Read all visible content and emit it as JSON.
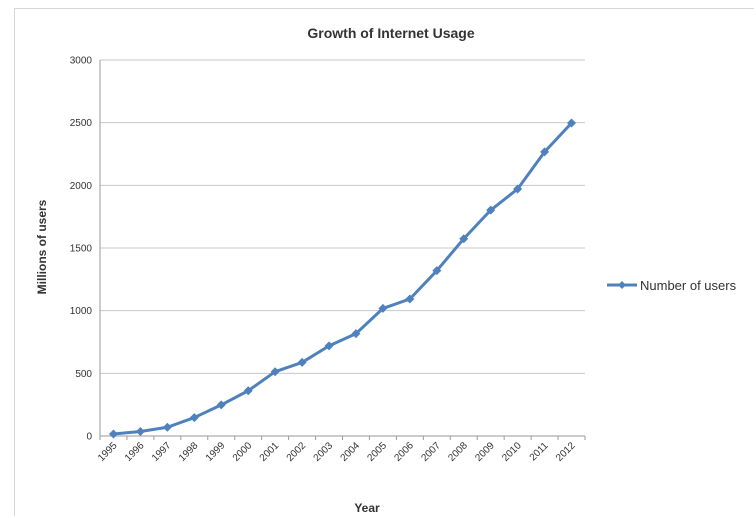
{
  "chart_data": {
    "type": "line",
    "title": "Growth of Internet Usage",
    "xlabel": "Year",
    "ylabel": "Millions of users",
    "categories": [
      "1995",
      "1996",
      "1997",
      "1998",
      "1999",
      "2000",
      "2001",
      "2002",
      "2003",
      "2004",
      "2005",
      "2006",
      "2007",
      "2008",
      "2009",
      "2010",
      "2011",
      "2012"
    ],
    "series": [
      {
        "name": "Number of users",
        "values": [
          16,
          36,
          70,
          147,
          248,
          361,
          513,
          587,
          719,
          817,
          1018,
          1093,
          1319,
          1574,
          1802,
          1971,
          2267,
          2497
        ],
        "color": "#4f81bd"
      }
    ],
    "ylim": [
      0,
      3000
    ],
    "yticks": [
      0,
      500,
      1000,
      1500,
      2000,
      2500,
      3000
    ],
    "grid": true,
    "legend_position": "right"
  }
}
